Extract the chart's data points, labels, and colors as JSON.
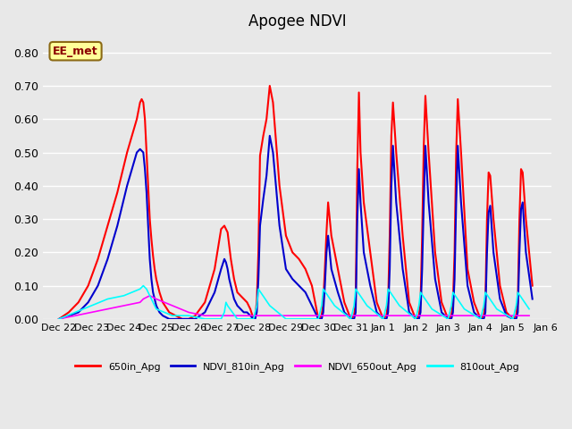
{
  "title": "Apogee NDVI",
  "annotation_text": "EE_met",
  "annotation_color": "#8B0000",
  "annotation_bg": "#FFFF99",
  "annotation_border": "#8B6914",
  "ylim": [
    0.0,
    0.85
  ],
  "yticks": [
    0.0,
    0.1,
    0.2,
    0.3,
    0.4,
    0.5,
    0.6,
    0.7,
    0.8
  ],
  "bg_color": "#E8E8E8",
  "plot_bg_color": "#E8E8E8",
  "grid_color": "#FFFFFF",
  "series": {
    "650in_Apg": {
      "color": "#FF0000",
      "lw": 1.5,
      "data_x": [
        22,
        22.3,
        22.6,
        22.9,
        23.2,
        23.5,
        23.8,
        24.1,
        24.4,
        24.5,
        24.55,
        24.6,
        24.65,
        24.7,
        24.75,
        24.8,
        24.85,
        24.9,
        24.95,
        25.0,
        25.05,
        25.1,
        25.2,
        25.4,
        25.6,
        25.8,
        26.0,
        26.2,
        26.5,
        26.8,
        27.0,
        27.1,
        27.15,
        27.2,
        27.25,
        27.3,
        27.35,
        27.4,
        27.5,
        27.6,
        27.7,
        27.8,
        27.9,
        28.0,
        28.05,
        28.1,
        28.15,
        28.2,
        28.3,
        28.4,
        28.5,
        28.6,
        28.8,
        29.0,
        29.2,
        29.4,
        29.6,
        29.8,
        30.0,
        30.1,
        30.15,
        30.2,
        30.25,
        30.3,
        30.4,
        30.6,
        30.8,
        31.0,
        31.1,
        31.15,
        31.2,
        31.25,
        31.3,
        31.4,
        31.6,
        31.8,
        32.0,
        32.1,
        32.15,
        32.2,
        32.25,
        32.3,
        32.4,
        32.6,
        32.8,
        33.0,
        33.1,
        33.15,
        33.2,
        33.25,
        33.3,
        33.4,
        33.6,
        33.8,
        34.0,
        34.1,
        34.15,
        34.2,
        34.25,
        34.3,
        34.4,
        34.6,
        34.8,
        35.0,
        35.1,
        35.15,
        35.2,
        35.25,
        35.3,
        35.4,
        35.6,
        35.8,
        36.0,
        36.1,
        36.15,
        36.2,
        36.25,
        36.3,
        36.4,
        36.6
      ],
      "data_y": [
        0.0,
        0.02,
        0.05,
        0.1,
        0.18,
        0.28,
        0.38,
        0.5,
        0.6,
        0.65,
        0.66,
        0.65,
        0.6,
        0.5,
        0.4,
        0.3,
        0.24,
        0.19,
        0.15,
        0.12,
        0.1,
        0.08,
        0.05,
        0.02,
        0.01,
        0.0,
        0.0,
        0.01,
        0.05,
        0.15,
        0.27,
        0.28,
        0.27,
        0.26,
        0.22,
        0.18,
        0.15,
        0.12,
        0.08,
        0.07,
        0.06,
        0.05,
        0.03,
        0.0,
        0.01,
        0.05,
        0.2,
        0.49,
        0.55,
        0.6,
        0.7,
        0.65,
        0.4,
        0.25,
        0.2,
        0.18,
        0.15,
        0.1,
        0.0,
        0.01,
        0.05,
        0.15,
        0.26,
        0.35,
        0.25,
        0.15,
        0.05,
        0.0,
        0.01,
        0.05,
        0.45,
        0.68,
        0.5,
        0.35,
        0.2,
        0.05,
        0.0,
        0.01,
        0.05,
        0.25,
        0.55,
        0.65,
        0.5,
        0.25,
        0.05,
        0.0,
        0.01,
        0.05,
        0.25,
        0.52,
        0.67,
        0.5,
        0.2,
        0.05,
        0.0,
        0.01,
        0.05,
        0.2,
        0.5,
        0.66,
        0.5,
        0.15,
        0.05,
        0.0,
        0.01,
        0.05,
        0.3,
        0.44,
        0.43,
        0.3,
        0.1,
        0.02,
        0.0,
        0.01,
        0.05,
        0.3,
        0.45,
        0.44,
        0.3,
        0.1
      ]
    },
    "NDVI_810in_Apg": {
      "color": "#0000CD",
      "lw": 1.5,
      "data_x": [
        22,
        22.3,
        22.6,
        22.9,
        23.2,
        23.5,
        23.8,
        24.1,
        24.4,
        24.5,
        24.55,
        24.6,
        24.65,
        24.7,
        24.75,
        24.8,
        24.85,
        24.9,
        24.95,
        25.0,
        25.05,
        25.1,
        25.2,
        25.4,
        25.6,
        25.8,
        26.0,
        26.2,
        26.5,
        26.8,
        27.0,
        27.1,
        27.15,
        27.2,
        27.25,
        27.3,
        27.35,
        27.4,
        27.5,
        27.6,
        27.7,
        27.8,
        27.9,
        28.0,
        28.05,
        28.1,
        28.15,
        28.2,
        28.3,
        28.4,
        28.5,
        28.6,
        28.8,
        29.0,
        29.2,
        29.4,
        29.6,
        29.8,
        30.0,
        30.1,
        30.15,
        30.2,
        30.25,
        30.3,
        30.4,
        30.6,
        30.8,
        31.0,
        31.1,
        31.15,
        31.2,
        31.25,
        31.3,
        31.4,
        31.6,
        31.8,
        32.0,
        32.1,
        32.15,
        32.2,
        32.25,
        32.3,
        32.4,
        32.6,
        32.8,
        33.0,
        33.1,
        33.15,
        33.2,
        33.25,
        33.3,
        33.4,
        33.6,
        33.8,
        34.0,
        34.1,
        34.15,
        34.2,
        34.25,
        34.3,
        34.4,
        34.6,
        34.8,
        35.0,
        35.1,
        35.15,
        35.2,
        35.25,
        35.3,
        35.4,
        35.6,
        35.8,
        36.0,
        36.1,
        36.15,
        36.2,
        36.25,
        36.3,
        36.4,
        36.6
      ],
      "data_y": [
        0.0,
        0.01,
        0.02,
        0.05,
        0.1,
        0.18,
        0.28,
        0.4,
        0.5,
        0.51,
        0.505,
        0.5,
        0.45,
        0.38,
        0.28,
        0.18,
        0.12,
        0.08,
        0.06,
        0.04,
        0.03,
        0.02,
        0.01,
        0.0,
        0.0,
        0.0,
        0.0,
        0.0,
        0.02,
        0.08,
        0.15,
        0.18,
        0.17,
        0.15,
        0.12,
        0.1,
        0.08,
        0.06,
        0.04,
        0.03,
        0.02,
        0.02,
        0.01,
        0.0,
        0.0,
        0.02,
        0.12,
        0.28,
        0.36,
        0.43,
        0.55,
        0.5,
        0.28,
        0.15,
        0.12,
        0.1,
        0.08,
        0.04,
        0.0,
        0.0,
        0.02,
        0.1,
        0.2,
        0.25,
        0.15,
        0.08,
        0.02,
        0.0,
        0.0,
        0.02,
        0.3,
        0.45,
        0.35,
        0.2,
        0.1,
        0.02,
        0.0,
        0.0,
        0.02,
        0.15,
        0.4,
        0.52,
        0.35,
        0.15,
        0.02,
        0.0,
        0.0,
        0.02,
        0.15,
        0.35,
        0.52,
        0.35,
        0.12,
        0.02,
        0.0,
        0.0,
        0.02,
        0.12,
        0.35,
        0.52,
        0.35,
        0.1,
        0.02,
        0.0,
        0.0,
        0.02,
        0.2,
        0.32,
        0.34,
        0.2,
        0.06,
        0.01,
        0.0,
        0.0,
        0.02,
        0.2,
        0.33,
        0.35,
        0.2,
        0.06
      ]
    },
    "NDVI_650out_Apg": {
      "color": "#FF00FF",
      "lw": 1.2,
      "data_x": [
        22,
        22.5,
        23.0,
        23.5,
        24.0,
        24.5,
        24.55,
        24.6,
        24.7,
        24.8,
        24.9,
        25.0,
        25.5,
        26.0,
        26.5,
        27.0,
        27.5,
        28.0,
        28.5,
        29.0,
        29.5,
        30.0,
        30.5,
        31.0,
        31.5,
        32.0,
        32.5,
        33.0,
        33.5,
        34.0,
        34.5,
        35.0,
        35.5,
        36.0,
        36.5
      ],
      "data_y": [
        0.0,
        0.01,
        0.02,
        0.03,
        0.04,
        0.05,
        0.055,
        0.06,
        0.065,
        0.07,
        0.065,
        0.06,
        0.04,
        0.02,
        0.01,
        0.01,
        0.01,
        0.01,
        0.01,
        0.01,
        0.01,
        0.01,
        0.01,
        0.01,
        0.01,
        0.01,
        0.01,
        0.01,
        0.01,
        0.01,
        0.01,
        0.01,
        0.01,
        0.01,
        0.01
      ]
    },
    "810out_Apg": {
      "color": "#00FFFF",
      "lw": 1.2,
      "data_x": [
        22,
        22.5,
        23.0,
        23.5,
        24.0,
        24.5,
        24.55,
        24.6,
        24.7,
        24.8,
        24.9,
        25.0,
        25.5,
        26.0,
        26.5,
        27.0,
        27.1,
        27.15,
        27.2,
        27.5,
        28.0,
        28.1,
        28.15,
        28.5,
        29.0,
        29.5,
        30.0,
        30.1,
        30.15,
        30.5,
        31.0,
        31.1,
        31.15,
        31.5,
        32.0,
        32.1,
        32.15,
        32.5,
        33.0,
        33.1,
        33.15,
        33.5,
        34.0,
        34.1,
        34.15,
        34.5,
        35.0,
        35.1,
        35.15,
        35.5,
        36.0,
        36.1,
        36.15,
        36.5
      ],
      "data_y": [
        0.0,
        0.02,
        0.04,
        0.06,
        0.07,
        0.09,
        0.095,
        0.1,
        0.09,
        0.07,
        0.05,
        0.03,
        0.01,
        0.01,
        0.0,
        0.0,
        0.02,
        0.05,
        0.04,
        0.0,
        0.0,
        0.04,
        0.09,
        0.04,
        0.0,
        0.0,
        0.0,
        0.04,
        0.09,
        0.04,
        0.0,
        0.04,
        0.09,
        0.04,
        0.0,
        0.04,
        0.09,
        0.04,
        0.0,
        0.04,
        0.08,
        0.03,
        0.0,
        0.04,
        0.08,
        0.03,
        0.0,
        0.04,
        0.08,
        0.03,
        0.0,
        0.04,
        0.08,
        0.03
      ]
    }
  },
  "xtick_positions": [
    22,
    23,
    24,
    25,
    26,
    27,
    28,
    29,
    30,
    31,
    32,
    33,
    34,
    35,
    36,
    37
  ],
  "xtick_labels": [
    "Dec 22",
    "Dec 23",
    "Dec 24",
    "Dec 25",
    "Dec 26",
    "Dec 27",
    "Dec 28",
    "Dec 29",
    "Dec 30",
    "Dec 31",
    "Jan 1",
    "Jan 2",
    "Jan 3",
    "Jan 4",
    "Jan 5",
    "Jan 6"
  ],
  "legend_entries": [
    {
      "label": "650in_Apg",
      "color": "#FF0000"
    },
    {
      "label": "NDVI_810in_Apg",
      "color": "#0000CD"
    },
    {
      "label": "NDVI_650out_Apg",
      "color": "#FF00FF"
    },
    {
      "label": "810out_Apg",
      "color": "#00FFFF"
    }
  ]
}
